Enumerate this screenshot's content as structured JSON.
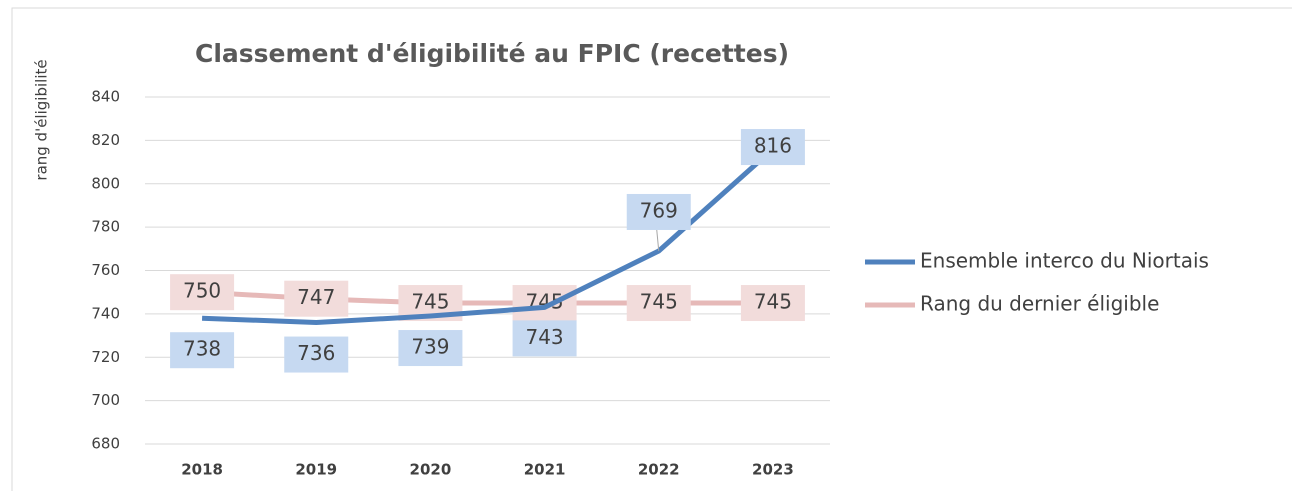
{
  "chart_data": {
    "type": "line",
    "title": "Classement d'éligibilité au FPIC (recettes)",
    "y_label": "rang d'éligibilité",
    "categories": [
      "2018",
      "2019",
      "2020",
      "2021",
      "2022",
      "2023"
    ],
    "series": [
      {
        "name": "Ensemble interco du Niortais",
        "color": "#4f81bd",
        "label_color": "#c6d9f1",
        "values": [
          738,
          736,
          739,
          743,
          769,
          816
        ]
      },
      {
        "name": "Rang du dernier éligible",
        "color": "#e6b9b8",
        "label_color": "#f2dcdb",
        "values": [
          750,
          747,
          745,
          745,
          745,
          745
        ]
      }
    ],
    "ylim": [
      680,
      840
    ],
    "yticks": [
      680,
      700,
      720,
      740,
      760,
      780,
      800,
      820,
      840
    ],
    "grid": true,
    "legend": "right"
  }
}
